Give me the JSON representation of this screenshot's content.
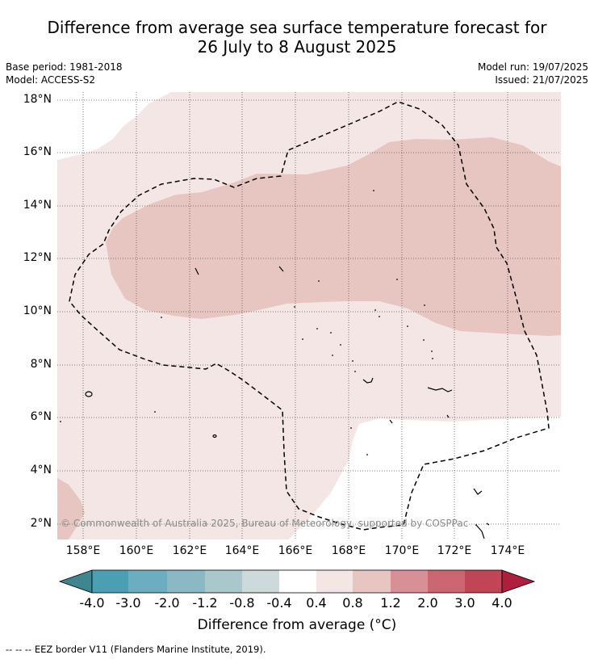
{
  "title": {
    "line1": "Difference from average sea surface temperature forecast for",
    "line2": "26 July to 8 August 2025"
  },
  "meta": {
    "base_period": "Base period: 1981-2018",
    "model": "Model: ACCESS-S2",
    "model_run": "Model run: 19/07/2025",
    "issued": "Issued: 21/07/2025"
  },
  "map": {
    "lat_labels": [
      "18°N",
      "16°N",
      "14°N",
      "12°N",
      "10°N",
      "8°N",
      "6°N",
      "4°N",
      "2°N"
    ],
    "lon_labels": [
      "158°E",
      "160°E",
      "162°E",
      "164°E",
      "166°E",
      "168°E",
      "170°E",
      "172°E",
      "174°E"
    ],
    "copyright": "© Commonwealth of Australia 2025, Bureau of Meteorology, supported by COSPPac"
  },
  "colorbar": {
    "tick_labels": [
      "-4.0",
      "-3.0",
      "-2.0",
      "-1.2",
      "-0.8",
      "-0.4",
      "0.4",
      "0.8",
      "1.2",
      "2.0",
      "3.0",
      "4.0"
    ],
    "colors": [
      "#4a9fb3",
      "#6aaebf",
      "#8ab8c4",
      "#a9c8cc",
      "#ccdadb",
      "#ffffff",
      "#f4e6e5",
      "#e7c6c2",
      "#d98f96",
      "#cc6670",
      "#c24555"
    ],
    "under_color": "#3f8592",
    "over_color": "#ad1f3c",
    "label": "Difference from average (°C)"
  },
  "footer": {
    "legend": "--  --  -- EEZ border V11 (Flanders Marine Institute, 2019)."
  }
}
